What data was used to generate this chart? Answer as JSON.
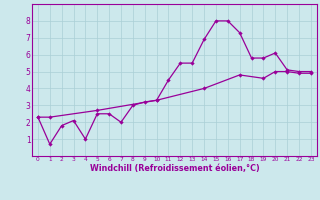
{
  "line1_x": [
    0,
    1,
    2,
    3,
    4,
    5,
    6,
    7,
    8,
    9,
    10,
    11,
    12,
    13,
    14,
    15,
    16,
    17,
    18,
    19,
    20,
    21,
    22,
    23
  ],
  "line1_y": [
    2.3,
    0.7,
    1.8,
    2.1,
    1.0,
    2.5,
    2.5,
    2.0,
    3.0,
    3.2,
    3.3,
    4.5,
    5.5,
    5.5,
    6.9,
    8.0,
    8.0,
    7.3,
    5.8,
    5.8,
    6.1,
    5.1,
    5.0,
    5.0
  ],
  "line2_x": [
    0,
    1,
    5,
    10,
    14,
    17,
    19,
    20,
    21,
    22,
    23
  ],
  "line2_y": [
    2.3,
    2.3,
    2.7,
    3.3,
    4.0,
    4.8,
    4.6,
    5.0,
    5.0,
    4.9,
    4.9
  ],
  "color": "#990099",
  "bg_color": "#cce8ec",
  "grid_color": "#aacfd6",
  "axis_color": "#990099",
  "xlim": [
    -0.5,
    23.5
  ],
  "ylim": [
    0,
    9
  ],
  "xticks": [
    0,
    1,
    2,
    3,
    4,
    5,
    6,
    7,
    8,
    9,
    10,
    11,
    12,
    13,
    14,
    15,
    16,
    17,
    18,
    19,
    20,
    21,
    22,
    23
  ],
  "yticks": [
    1,
    2,
    3,
    4,
    5,
    6,
    7,
    8
  ],
  "xlabel": "Windchill (Refroidissement éolien,°C)",
  "xtick_fontsize": 4.2,
  "ytick_fontsize": 5.5,
  "xlabel_fontsize": 5.8,
  "linewidth": 0.9,
  "markersize": 2.2
}
